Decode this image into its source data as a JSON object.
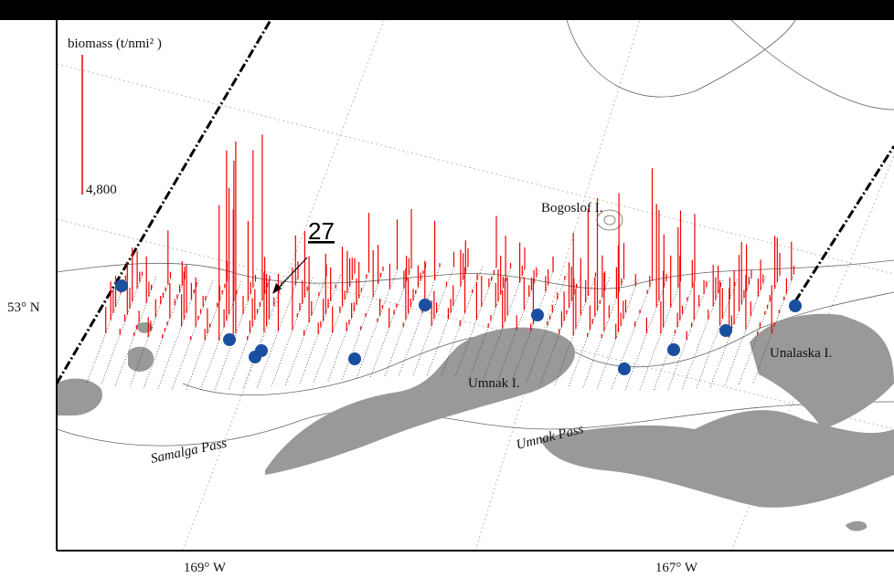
{
  "legend": {
    "title": "biomass (t/nmi² )",
    "scale_label": "4,800"
  },
  "annotations": {
    "transect": "27",
    "bogoslof": "Bogoslof I.",
    "umnak": "Umnak I.",
    "unalaska": "Unalaska I.",
    "samalga": "Samalga Pass",
    "umnak_pass": "Umnak Pass"
  },
  "axes": {
    "lat_label": "53° N",
    "lon_labels": [
      "169° W",
      "167° W"
    ]
  }
}
